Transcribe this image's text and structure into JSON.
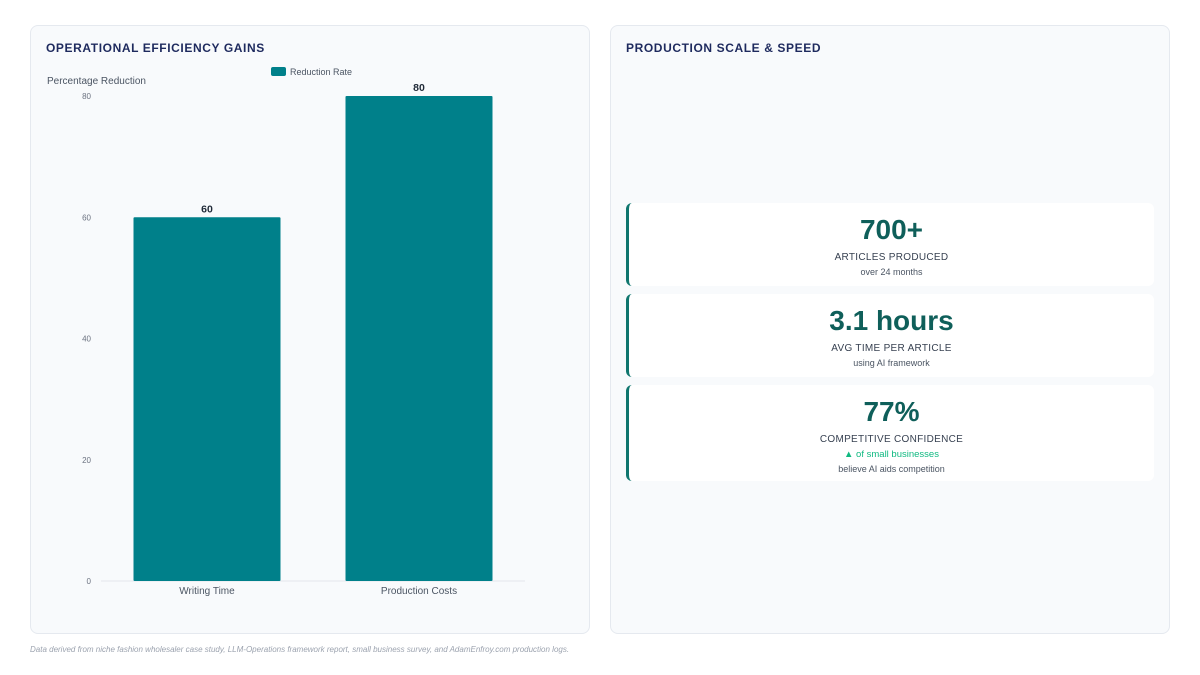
{
  "left_panel": {
    "title": "OPERATIONAL EFFICIENCY GAINS"
  },
  "right_panel": {
    "title": "PRODUCTION SCALE & SPEED",
    "stats": [
      {
        "value": "700+",
        "label": "ARTICLES PRODUCED",
        "sub": "over 24 months"
      },
      {
        "value": "3.1 hours",
        "label": "AVG TIME PER ARTICLE",
        "sub": "using AI framework"
      },
      {
        "value": "77%",
        "label": "COMPETITIVE CONFIDENCE",
        "trend": "▲ of small businesses",
        "sub": "believe AI aids competition"
      }
    ]
  },
  "chart_data": {
    "type": "bar",
    "categories": [
      "Writing Time",
      "Production Costs"
    ],
    "series": [
      {
        "name": "Reduction Rate",
        "values": [
          60,
          80
        ],
        "color": "#00808a"
      }
    ],
    "ylabel": "Percentage Reduction",
    "ylim": [
      0,
      80
    ],
    "yticks": [
      0,
      20,
      40,
      60,
      80
    ],
    "legend_position": "top-center",
    "data_labels": true,
    "grid": false
  },
  "footnote": "Data derived from niche fashion wholesaler case study, LLM-Operations framework report, small business survey, and AdamEnfroy.com production logs."
}
